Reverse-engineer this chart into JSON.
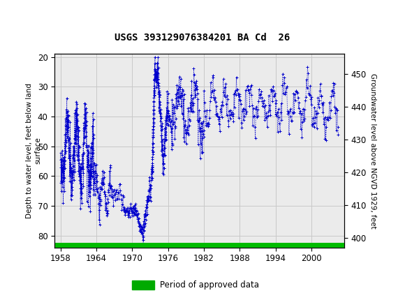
{
  "title": "USGS 393129076384201 BA Cd  26",
  "ylabel_left": "Depth to water level, feet below land\nsurface",
  "ylabel_right": "Groundwater level above NGVD 1929, feet",
  "ylim_left": [
    84,
    19
  ],
  "ylim_right": [
    397,
    456
  ],
  "xlim": [
    1957.0,
    2005.5
  ],
  "xticks": [
    1958,
    1964,
    1970,
    1976,
    1982,
    1988,
    1994,
    2000
  ],
  "yticks_left": [
    20,
    30,
    40,
    50,
    60,
    70,
    80
  ],
  "yticks_right": [
    450,
    440,
    430,
    420,
    410,
    400
  ],
  "header_color": "#1a6b3c",
  "data_color": "#0000cc",
  "background_plot": "#ebebeb",
  "grid_color": "#c8c8c8",
  "approved_bar_color": "#00bb00",
  "legend_bar_color": "#00aa00"
}
